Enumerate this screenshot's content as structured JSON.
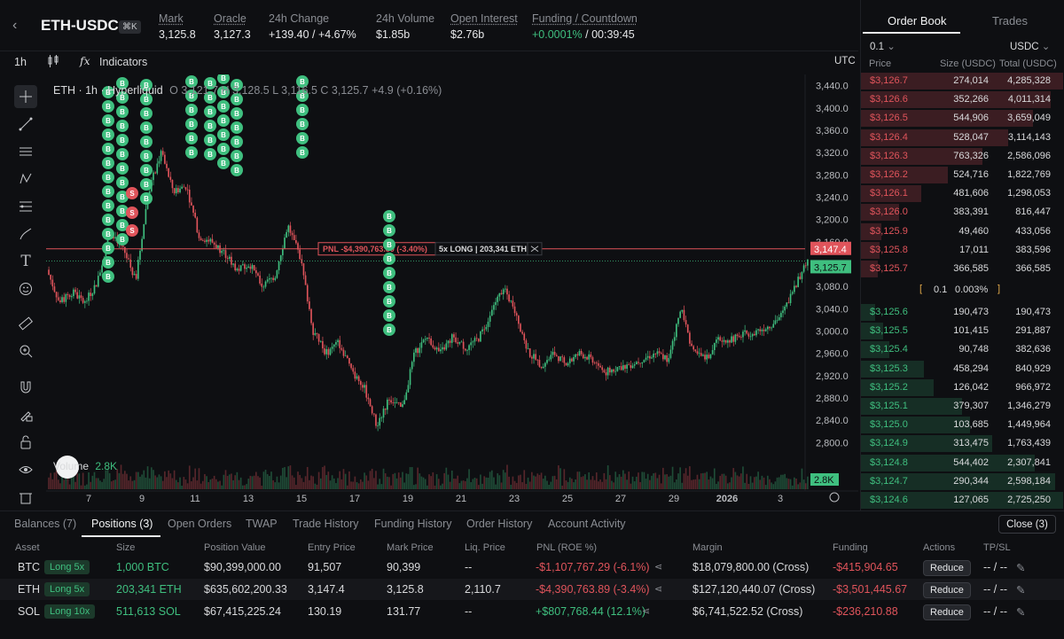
{
  "header": {
    "symbol": "ETH-USDC",
    "shortcut": "⌘K",
    "stats": [
      {
        "label": "Mark",
        "value": "3,125.8",
        "underline": true
      },
      {
        "label": "Oracle",
        "value": "3,127.3",
        "underline": true
      },
      {
        "label": "24h Change",
        "value_change": "+139.40 / +4.67%",
        "underline": false
      },
      {
        "label": "24h Volume",
        "value": "$1.85b",
        "underline": false
      },
      {
        "label": "Open Interest",
        "value": "$2.76b",
        "underline": true
      },
      {
        "label": "Funding / Countdown",
        "value_rate": "+0.0001%",
        "value_countdown": "/ 00:39:45",
        "underline": true
      }
    ]
  },
  "toolbar": {
    "interval": "1h",
    "indicators": "Indicators",
    "timezone": "UTC"
  },
  "chart": {
    "legend_prefix": "ETH · 1h · Hyperliquid",
    "legend_ohlc": "O 3,121.7  H 3,128.5  L 3,116.5  C 3,125.7  +4.9 (+0.16%)",
    "volume_label": "Volume",
    "volume_value": "2.8K",
    "volume_tag": "2.8K",
    "pnl_tag": "PNL -$4,390,763.89 (-3.40%)",
    "position_tag": "5x LONG | 203,341 ETH",
    "entry_price_tag": "3,147.4",
    "mark_price_tag": "3,125.7",
    "y_ticks": [
      "3,440.0",
      "3,400.0",
      "3,360.0",
      "3,320.0",
      "3,280.0",
      "3,240.0",
      "3,200.0",
      "3,160.0",
      "3,120.0",
      "3,080.0",
      "3,040.0",
      "3,000.0",
      "2,960.0",
      "2,920.0",
      "2,880.0",
      "2,840.0",
      "2,800.0"
    ],
    "x_ticks": [
      "7",
      "9",
      "11",
      "13",
      "15",
      "17",
      "19",
      "21",
      "23",
      "25",
      "27",
      "29",
      "2026",
      "3"
    ],
    "colors": {
      "up": "#3fbf7f",
      "down": "#e0545b",
      "bg": "#0e0f12"
    }
  },
  "chart_data": {
    "type": "candlestick",
    "title": "ETH · 1h · Hyperliquid",
    "ylim": [
      2780,
      3460
    ],
    "x_range_labels": [
      "7",
      "9",
      "11",
      "13",
      "15",
      "17",
      "19",
      "21",
      "23",
      "25",
      "27",
      "29",
      "2026",
      "3"
    ],
    "price_path": [
      {
        "x": 0,
        "y": 3110
      },
      {
        "x": 4,
        "y": 3050
      },
      {
        "x": 8,
        "y": 3070
      },
      {
        "x": 12,
        "y": 3050
      },
      {
        "x": 16,
        "y": 3090
      },
      {
        "x": 20,
        "y": 3180
      },
      {
        "x": 24,
        "y": 3150
      },
      {
        "x": 28,
        "y": 3090
      },
      {
        "x": 32,
        "y": 3250
      },
      {
        "x": 36,
        "y": 3320
      },
      {
        "x": 40,
        "y": 3250
      },
      {
        "x": 44,
        "y": 3260
      },
      {
        "x": 48,
        "y": 3170
      },
      {
        "x": 52,
        "y": 3160
      },
      {
        "x": 56,
        "y": 3140
      },
      {
        "x": 60,
        "y": 3110
      },
      {
        "x": 64,
        "y": 3120
      },
      {
        "x": 68,
        "y": 3080
      },
      {
        "x": 72,
        "y": 3100
      },
      {
        "x": 76,
        "y": 3190
      },
      {
        "x": 80,
        "y": 3130
      },
      {
        "x": 84,
        "y": 3000
      },
      {
        "x": 88,
        "y": 2960
      },
      {
        "x": 92,
        "y": 2980
      },
      {
        "x": 96,
        "y": 2930
      },
      {
        "x": 100,
        "y": 2900
      },
      {
        "x": 104,
        "y": 2830
      },
      {
        "x": 108,
        "y": 2880
      },
      {
        "x": 112,
        "y": 2860
      },
      {
        "x": 116,
        "y": 2960
      },
      {
        "x": 120,
        "y": 2990
      },
      {
        "x": 124,
        "y": 2960
      },
      {
        "x": 128,
        "y": 2990
      },
      {
        "x": 132,
        "y": 2970
      },
      {
        "x": 136,
        "y": 2985
      },
      {
        "x": 140,
        "y": 3030
      },
      {
        "x": 144,
        "y": 3080
      },
      {
        "x": 148,
        "y": 3030
      },
      {
        "x": 152,
        "y": 2960
      },
      {
        "x": 156,
        "y": 2940
      },
      {
        "x": 160,
        "y": 2960
      },
      {
        "x": 164,
        "y": 2940
      },
      {
        "x": 168,
        "y": 2960
      },
      {
        "x": 172,
        "y": 2950
      },
      {
        "x": 176,
        "y": 2925
      },
      {
        "x": 180,
        "y": 2935
      },
      {
        "x": 184,
        "y": 2940
      },
      {
        "x": 188,
        "y": 2950
      },
      {
        "x": 192,
        "y": 2960
      },
      {
        "x": 196,
        "y": 2950
      },
      {
        "x": 200,
        "y": 3040
      },
      {
        "x": 204,
        "y": 2960
      },
      {
        "x": 208,
        "y": 2950
      },
      {
        "x": 212,
        "y": 2985
      },
      {
        "x": 216,
        "y": 2985
      },
      {
        "x": 220,
        "y": 2995
      },
      {
        "x": 224,
        "y": 3000
      },
      {
        "x": 228,
        "y": 3010
      },
      {
        "x": 232,
        "y": 3030
      },
      {
        "x": 236,
        "y": 3080
      },
      {
        "x": 240,
        "y": 3125
      }
    ],
    "entry_price": 3147.4,
    "mark_price": 3125.7,
    "grid": false
  },
  "orderbook": {
    "tabs": [
      "Order Book",
      "Trades"
    ],
    "tick": "0.1",
    "currency": "USDC",
    "headers": [
      "Price",
      "Size (USDC)",
      "Total (USDC)"
    ],
    "spread": {
      "value": "0.1",
      "pct": "0.003%"
    },
    "asks": [
      {
        "price": "$3,126.7",
        "size": "274,014",
        "total": "4,285,328",
        "depth": 1.0
      },
      {
        "price": "$3,126.6",
        "size": "352,266",
        "total": "4,011,314",
        "depth": 0.94
      },
      {
        "price": "$3,126.5",
        "size": "544,906",
        "total": "3,659,049",
        "depth": 0.85
      },
      {
        "price": "$3,126.4",
        "size": "528,047",
        "total": "3,114,143",
        "depth": 0.73
      },
      {
        "price": "$3,126.3",
        "size": "763,326",
        "total": "2,586,096",
        "depth": 0.6
      },
      {
        "price": "$3,126.2",
        "size": "524,716",
        "total": "1,822,769",
        "depth": 0.43
      },
      {
        "price": "$3,126.1",
        "size": "481,606",
        "total": "1,298,053",
        "depth": 0.3
      },
      {
        "price": "$3,126.0",
        "size": "383,391",
        "total": "816,447",
        "depth": 0.19
      },
      {
        "price": "$3,125.9",
        "size": "49,460",
        "total": "433,056",
        "depth": 0.1
      },
      {
        "price": "$3,125.8",
        "size": "17,011",
        "total": "383,596",
        "depth": 0.09
      },
      {
        "price": "$3,125.7",
        "size": "366,585",
        "total": "366,585",
        "depth": 0.085
      }
    ],
    "bids": [
      {
        "price": "$3,125.6",
        "size": "190,473",
        "total": "190,473",
        "depth": 0.07
      },
      {
        "price": "$3,125.5",
        "size": "101,415",
        "total": "291,887",
        "depth": 0.11
      },
      {
        "price": "$3,125.4",
        "size": "90,748",
        "total": "382,636",
        "depth": 0.14
      },
      {
        "price": "$3,125.3",
        "size": "458,294",
        "total": "840,929",
        "depth": 0.31
      },
      {
        "price": "$3,125.2",
        "size": "126,042",
        "total": "966,972",
        "depth": 0.36
      },
      {
        "price": "$3,125.1",
        "size": "379,307",
        "total": "1,346,279",
        "depth": 0.5
      },
      {
        "price": "$3,125.0",
        "size": "103,685",
        "total": "1,449,964",
        "depth": 0.54
      },
      {
        "price": "$3,124.9",
        "size": "313,475",
        "total": "1,763,439",
        "depth": 0.65
      },
      {
        "price": "$3,124.8",
        "size": "544,402",
        "total": "2,307,841",
        "depth": 0.86
      },
      {
        "price": "$3,124.7",
        "size": "290,344",
        "total": "2,598,184",
        "depth": 0.96
      },
      {
        "price": "$3,124.6",
        "size": "127,065",
        "total": "2,725,250",
        "depth": 1.0
      }
    ]
  },
  "bottom": {
    "tabs": [
      "Balances (7)",
      "Positions (3)",
      "Open Orders",
      "TWAP",
      "Trade History",
      "Funding History",
      "Order History",
      "Account Activity"
    ],
    "close_all": "Close (3)",
    "columns": [
      "Asset",
      "Size",
      "Position Value",
      "Entry Price",
      "Mark Price",
      "Liq. Price",
      "PNL (ROE %)",
      "Margin",
      "Funding",
      "Actions",
      "TP/SL"
    ],
    "positions": [
      {
        "asset": "BTC",
        "lev": "Long 5x",
        "size": "1,000 BTC",
        "value": "$90,399,000.00",
        "entry": "91,507",
        "mark": "90,399",
        "liq": "--",
        "pnl": "-$1,107,767.29 (-6.1%)",
        "pnl_pos": false,
        "margin": "$18,079,800.00 (Cross)",
        "funding": "-$415,904.65",
        "action": "Reduce",
        "tpsl": "-- / --"
      },
      {
        "asset": "ETH",
        "lev": "Long 5x",
        "size": "203,341 ETH",
        "value": "$635,602,200.33",
        "entry": "3,147.4",
        "mark": "3,125.8",
        "liq": "2,110.7",
        "pnl": "-$4,390,763.89 (-3.4%)",
        "pnl_pos": false,
        "margin": "$127,120,440.07 (Cross)",
        "funding": "-$3,501,445.67",
        "action": "Reduce",
        "tpsl": "-- / --"
      },
      {
        "asset": "SOL",
        "lev": "Long 10x",
        "size": "511,613 SOL",
        "value": "$67,415,225.24",
        "entry": "130.19",
        "mark": "131.77",
        "liq": "--",
        "pnl": "+$807,768.44 (12.1%)",
        "pnl_pos": true,
        "margin": "$6,741,522.52 (Cross)",
        "funding": "-$236,210.88",
        "action": "Reduce",
        "tpsl": "-- / --"
      }
    ]
  }
}
